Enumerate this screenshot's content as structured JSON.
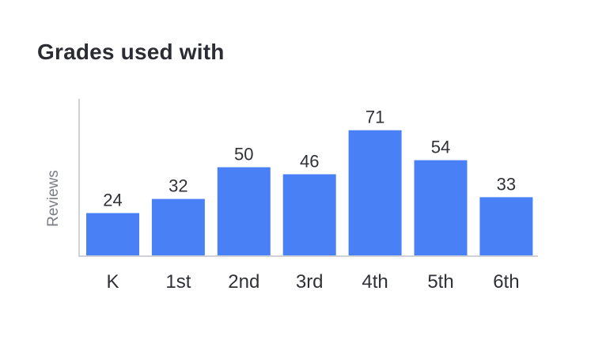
{
  "title": "Grades used with",
  "colors": {
    "bar": "#4a80f5",
    "axis": "#cfd1d6",
    "text": "#2f3136",
    "muted": "#7b7e85"
  },
  "chart_data": {
    "type": "bar",
    "title": "Grades used with",
    "xlabel": "",
    "ylabel": "Reviews",
    "categories": [
      "K",
      "1st",
      "2nd",
      "3rd",
      "4th",
      "5th",
      "6th"
    ],
    "values": [
      24,
      32,
      50,
      46,
      71,
      54,
      33
    ],
    "ylim": [
      0,
      90
    ],
    "grid": false,
    "legend": "none",
    "data_labels": true
  }
}
